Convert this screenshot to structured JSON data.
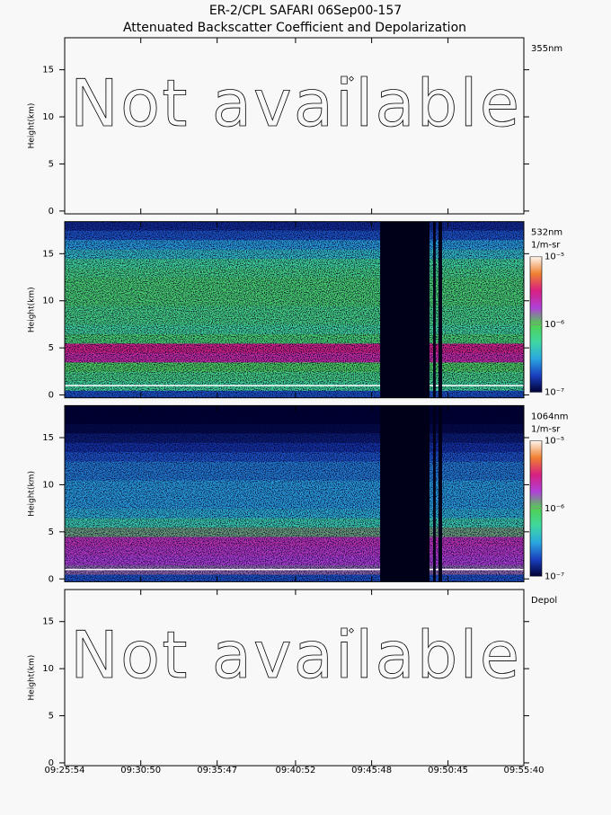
{
  "header": {
    "title": "ER-2/CPL SAFARI 06Sep00-157",
    "subtitle": "Attenuated Backscatter Coefficient and Depolarization"
  },
  "xaxis": {
    "xlim": [
      "09:25:54",
      "09:55:40"
    ],
    "xticks": [
      "09:25:54",
      "09:30:50",
      "09:35:47",
      "09:40:52",
      "09:45:48",
      "09:50:45",
      "09:55:40"
    ]
  },
  "chart_data": [
    {
      "type": "unavailable",
      "label": "355nm",
      "ylabel": "Height(km)",
      "ylim": [
        -0.3,
        18.4
      ],
      "yticks": [
        0,
        5,
        10,
        15
      ],
      "annotation": "Not available"
    },
    {
      "type": "curtain",
      "label": "532nm",
      "ylabel": "Height(km)",
      "ylim": [
        -0.3,
        18.4
      ],
      "yticks": [
        0,
        5,
        10,
        15
      ],
      "heights": [
        0,
        1,
        2,
        3,
        4,
        5,
        6,
        7,
        8,
        9,
        10,
        11,
        12,
        13,
        14,
        15,
        16,
        17,
        18
      ],
      "values": [
        2e-07,
        6e-07,
        7e-07,
        9e-07,
        2.5e-06,
        3e-06,
        8e-07,
        6e-07,
        7e-07,
        7e-07,
        8e-07,
        8e-07,
        8e-07,
        7e-07,
        6e-07,
        4e-07,
        3e-07,
        2e-07,
        1.5e-07
      ],
      "gaps": [
        [
          "09:46:21",
          "09:49:33"
        ],
        [
          "09:49:47",
          "09:49:57"
        ],
        [
          "09:50:08",
          "09:50:22"
        ]
      ],
      "surface_km": 1,
      "colorbar": {
        "label": "1/m-sr",
        "log": true,
        "ylim": [
          1e-07,
          1e-05
        ],
        "ticks": [
          {
            "value": 1e-07,
            "label": "10⁻⁷"
          },
          {
            "value": 1e-06,
            "label": "10⁻⁶"
          },
          {
            "value": 1e-05,
            "label": "10⁻⁵"
          }
        ],
        "colormap": [
          "#000033",
          "#1a3fbf",
          "#2aa8e0",
          "#40d8a0",
          "#50d050",
          "#b040d8",
          "#d82080",
          "#f08030",
          "#fff6ee"
        ]
      }
    },
    {
      "type": "curtain",
      "label": "1064nm",
      "ylabel": "Height(km)",
      "ylim": [
        -0.3,
        18.4
      ],
      "yticks": [
        0,
        5,
        10,
        15
      ],
      "heights": [
        0,
        1,
        2,
        3,
        4,
        5,
        6,
        7,
        8,
        9,
        10,
        11,
        12,
        13,
        14,
        15,
        16,
        17,
        18
      ],
      "values": [
        2e-07,
        1.5e-06,
        1.8e-06,
        2e-06,
        2.2e-06,
        1.2e-06,
        5e-07,
        3.5e-07,
        3e-07,
        3e-07,
        3e-07,
        2.5e-07,
        2.5e-07,
        2e-07,
        1.6e-07,
        1.3e-07,
        1.1e-07,
        1e-07,
        1e-07
      ],
      "gaps": [
        [
          "09:46:21",
          "09:49:33"
        ],
        [
          "09:49:47",
          "09:49:57"
        ],
        [
          "09:50:08",
          "09:50:22"
        ]
      ],
      "surface_km": 1,
      "colorbar": {
        "label": "1/m-sr",
        "log": true,
        "ylim": [
          1e-07,
          1e-05
        ],
        "ticks": [
          {
            "value": 1e-07,
            "label": "10⁻⁷"
          },
          {
            "value": 1e-06,
            "label": "10⁻⁶"
          },
          {
            "value": 1e-05,
            "label": "10⁻⁵"
          }
        ],
        "colormap": [
          "#000033",
          "#1a3fbf",
          "#2aa8e0",
          "#40d8a0",
          "#50d050",
          "#b040d8",
          "#d82080",
          "#f08030",
          "#fff6ee"
        ]
      }
    },
    {
      "type": "unavailable",
      "label": "Depol",
      "ylabel": "Height(km)",
      "ylim": [
        -0.3,
        18.4
      ],
      "yticks": [
        0,
        5,
        10,
        15
      ],
      "annotation": "Not available"
    }
  ]
}
